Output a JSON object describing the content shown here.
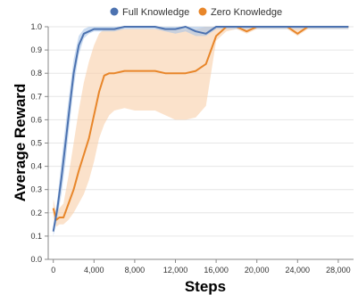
{
  "chart_data": {
    "type": "line",
    "xlabel": "Steps",
    "ylabel": "Average Reward",
    "xlim": [
      -500,
      29500
    ],
    "ylim": [
      0,
      1.0
    ],
    "xticks": [
      0,
      4000,
      8000,
      12000,
      16000,
      20000,
      24000,
      28000
    ],
    "xtick_labels": [
      "0",
      "4,000",
      "8,000",
      "12,000",
      "16,000",
      "20,000",
      "24,000",
      "28,000"
    ],
    "yticks": [
      0,
      0.1,
      0.2,
      0.3,
      0.4,
      0.5,
      0.6,
      0.7,
      0.8,
      0.9,
      1.0
    ],
    "ytick_labels": [
      "0.0",
      "0.1",
      "0.2",
      "0.3",
      "0.4",
      "0.5",
      "0.6",
      "0.7",
      "0.8",
      "0.9",
      "1.0"
    ],
    "grid": "horizontal",
    "legend_position": "top",
    "series": [
      {
        "name": "Full Knowledge",
        "color": "#4c72b0",
        "band_color": "#a9c4e8",
        "x": [
          0,
          400,
          800,
          1200,
          1600,
          2000,
          2500,
          3000,
          3500,
          4000,
          5000,
          6000,
          7000,
          8000,
          9000,
          10000,
          11000,
          12000,
          13000,
          14000,
          15000,
          16000,
          18000,
          20000,
          22000,
          24000,
          26000,
          29000
        ],
        "y": [
          0.12,
          0.22,
          0.35,
          0.5,
          0.65,
          0.8,
          0.92,
          0.97,
          0.98,
          0.99,
          0.99,
          0.99,
          1.0,
          1.0,
          1.0,
          1.0,
          0.99,
          0.99,
          1.0,
          0.98,
          0.97,
          1.0,
          1.0,
          1.0,
          1.0,
          1.0,
          1.0,
          1.0
        ],
        "lower": [
          0.1,
          0.18,
          0.28,
          0.42,
          0.58,
          0.74,
          0.88,
          0.95,
          0.97,
          0.98,
          0.98,
          0.98,
          0.99,
          0.99,
          0.99,
          0.99,
          0.98,
          0.97,
          0.98,
          0.96,
          0.96,
          0.99,
          0.99,
          0.99,
          0.99,
          0.99,
          0.99,
          0.99
        ],
        "upper": [
          0.14,
          0.26,
          0.42,
          0.58,
          0.72,
          0.86,
          0.96,
          0.99,
          1.0,
          1.0,
          1.0,
          1.0,
          1.0,
          1.0,
          1.0,
          1.0,
          1.0,
          1.0,
          1.0,
          1.0,
          1.0,
          1.0,
          1.0,
          1.0,
          1.0,
          1.0,
          1.0,
          1.0
        ]
      },
      {
        "name": "Zero Knowledge",
        "color": "#e8862a",
        "band_color": "#f8cfa8",
        "x": [
          0,
          300,
          600,
          1000,
          1500,
          2000,
          2500,
          3000,
          3500,
          4000,
          4500,
          5000,
          5500,
          6000,
          7000,
          8000,
          9000,
          10000,
          11000,
          12000,
          13000,
          14000,
          15000,
          15500,
          16000,
          16500,
          17000,
          18000,
          19000,
          20000,
          22000,
          23000,
          24000,
          25000,
          26000,
          29000
        ],
        "y": [
          0.22,
          0.17,
          0.18,
          0.18,
          0.24,
          0.3,
          0.38,
          0.45,
          0.52,
          0.62,
          0.72,
          0.79,
          0.8,
          0.8,
          0.81,
          0.81,
          0.81,
          0.81,
          0.8,
          0.8,
          0.8,
          0.81,
          0.84,
          0.9,
          0.96,
          0.98,
          1.0,
          1.0,
          0.98,
          1.0,
          1.0,
          1.0,
          0.97,
          1.0,
          1.0,
          1.0
        ],
        "lower": [
          0.18,
          0.14,
          0.15,
          0.15,
          0.17,
          0.2,
          0.24,
          0.28,
          0.34,
          0.42,
          0.52,
          0.58,
          0.62,
          0.64,
          0.65,
          0.64,
          0.64,
          0.64,
          0.62,
          0.6,
          0.6,
          0.61,
          0.66,
          0.8,
          0.94,
          0.96,
          0.98,
          0.99,
          0.97,
          0.99,
          0.99,
          0.99,
          0.96,
          0.99,
          0.99,
          0.99
        ],
        "upper": [
          0.26,
          0.2,
          0.22,
          0.24,
          0.36,
          0.5,
          0.64,
          0.76,
          0.85,
          0.92,
          0.97,
          0.99,
          0.99,
          0.99,
          0.99,
          0.99,
          0.99,
          0.99,
          0.99,
          0.99,
          0.99,
          0.99,
          1.0,
          1.0,
          1.0,
          1.0,
          1.0,
          1.0,
          1.0,
          1.0,
          1.0,
          1.0,
          1.0,
          1.0,
          1.0,
          1.0
        ]
      }
    ]
  }
}
